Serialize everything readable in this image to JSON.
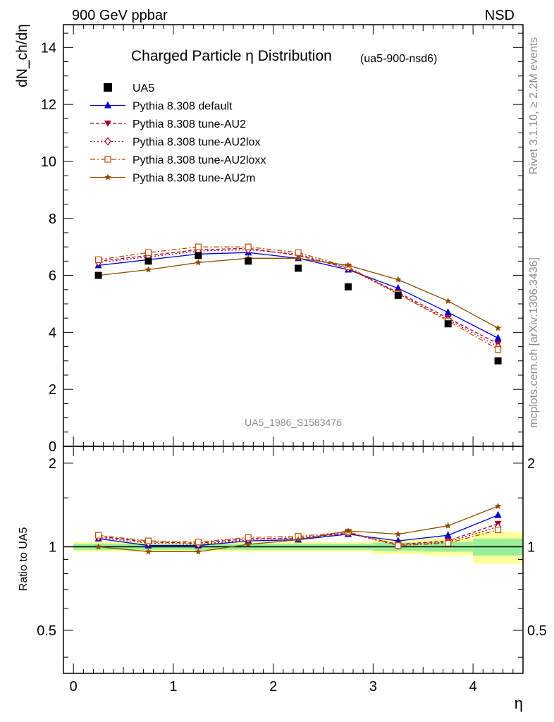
{
  "header": {
    "left": "900 GeV ppbar",
    "right": "NSD"
  },
  "side_labels": {
    "rivet": "Rivet 3.1.10, ≥ 2.2M events",
    "mcplots": "mcplots.cern.ch [arXiv:1306.3436]"
  },
  "chart_data": [
    {
      "type": "line",
      "title": "Charged Particle η Distribution",
      "subtitle": "(ua5-900-nsd6)",
      "watermark": "UA5_1986_S1583476",
      "xlabel": "η",
      "ylabel": "dN_ch/dη",
      "xlim": [
        -0.1,
        4.5
      ],
      "ylim": [
        0,
        14.8
      ],
      "yticks": [
        0,
        2,
        4,
        6,
        8,
        10,
        12,
        14
      ],
      "legend_position": "top-left",
      "x": [
        0.25,
        0.75,
        1.25,
        1.75,
        2.25,
        2.75,
        3.25,
        3.75,
        4.25
      ],
      "data": {
        "name": "UA5",
        "color": "#000000",
        "marker": "square",
        "values": [
          6.0,
          6.5,
          6.7,
          6.5,
          6.25,
          5.6,
          5.3,
          4.3,
          3.0
        ]
      },
      "series": [
        {
          "name": "Pythia 8.308 default",
          "color": "#0000cc",
          "marker": "triangle-up",
          "dash": "solid",
          "values": [
            6.35,
            6.55,
            6.75,
            6.8,
            6.6,
            6.2,
            5.55,
            4.7,
            3.8
          ]
        },
        {
          "name": "Pythia 8.308 tune-AU2",
          "color": "#a0003c",
          "marker": "triangle-down",
          "dash": "dashed",
          "values": [
            6.5,
            6.7,
            6.9,
            6.95,
            6.7,
            6.25,
            5.4,
            4.5,
            3.6
          ]
        },
        {
          "name": "Pythia 8.308 tune-AU2lox",
          "color": "#b0001e",
          "marker": "diamond-open",
          "dash": "dotted",
          "values": [
            6.45,
            6.65,
            6.85,
            6.9,
            6.75,
            6.25,
            5.35,
            4.45,
            3.5
          ]
        },
        {
          "name": "Pythia 8.308 tune-AU2loxx",
          "color": "#c04a00",
          "marker": "square-open",
          "dash": "dashdot",
          "values": [
            6.55,
            6.8,
            7.0,
            7.0,
            6.8,
            6.3,
            5.35,
            4.4,
            3.4
          ]
        },
        {
          "name": "Pythia 8.308 tune-AU2m",
          "color": "#8c4a00",
          "marker": "star",
          "dash": "solid",
          "values": [
            6.0,
            6.2,
            6.45,
            6.6,
            6.6,
            6.35,
            5.85,
            5.1,
            4.15
          ]
        }
      ]
    },
    {
      "type": "line",
      "title": "",
      "xlabel": "η",
      "ylabel": "Ratio to UA5",
      "xlim": [
        -0.1,
        4.5
      ],
      "ylim": [
        0.35,
        2.3
      ],
      "yticks": [
        0.5,
        1,
        2
      ],
      "x": [
        0.25,
        0.75,
        1.25,
        1.75,
        2.25,
        2.75,
        3.25,
        3.75,
        4.25
      ],
      "bands": {
        "x_edges": [
          0,
          0.5,
          1.0,
          1.5,
          2.0,
          2.5,
          3.0,
          3.5,
          4.0,
          4.5
        ],
        "yellow_half_width": [
          0.04,
          0.04,
          0.04,
          0.04,
          0.04,
          0.04,
          0.06,
          0.07,
          0.13
        ],
        "green_half_width": [
          0.025,
          0.025,
          0.025,
          0.025,
          0.025,
          0.025,
          0.035,
          0.04,
          0.07
        ]
      },
      "series": [
        {
          "name": "Pythia 8.308 default",
          "color": "#0000cc",
          "values": [
            1.07,
            1.01,
            1.01,
            1.05,
            1.06,
            1.11,
            1.05,
            1.1,
            1.3
          ]
        },
        {
          "name": "Pythia 8.308 tune-AU2",
          "color": "#a0003c",
          "values": [
            1.09,
            1.04,
            1.03,
            1.07,
            1.07,
            1.12,
            1.02,
            1.05,
            1.21
          ]
        },
        {
          "name": "Pythia 8.308 tune-AU2lox",
          "color": "#b0001e",
          "values": [
            1.08,
            1.03,
            1.02,
            1.06,
            1.08,
            1.12,
            1.01,
            1.04,
            1.18
          ]
        },
        {
          "name": "Pythia 8.308 tune-AU2loxx",
          "color": "#c04a00",
          "values": [
            1.1,
            1.05,
            1.04,
            1.08,
            1.09,
            1.13,
            1.01,
            1.03,
            1.15
          ]
        },
        {
          "name": "Pythia 8.308 tune-AU2m",
          "color": "#8c4a00",
          "values": [
            1.0,
            0.96,
            0.96,
            1.02,
            1.06,
            1.14,
            1.11,
            1.19,
            1.4
          ]
        }
      ]
    }
  ]
}
